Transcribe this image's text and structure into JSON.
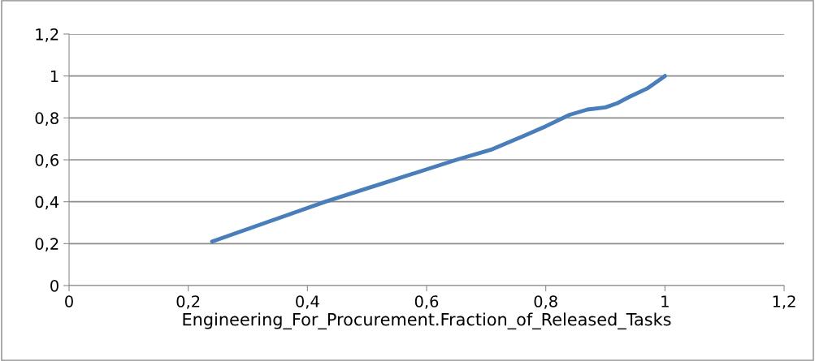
{
  "chart_data": {
    "type": "line",
    "xlabel": "Engineering_For_Procurement.Fraction_of_Released_Tasks",
    "x": [
      0.24,
      0.33,
      0.43,
      0.54,
      0.65,
      0.71,
      0.76,
      0.8,
      0.84,
      0.87,
      0.9,
      0.92,
      0.94,
      0.97,
      1.0
    ],
    "series": [
      {
        "color": "#4a7ebb",
        "values": [
          0.21,
          0.3,
          0.4,
          0.5,
          0.6,
          0.65,
          0.71,
          0.76,
          0.815,
          0.84,
          0.85,
          0.87,
          0.9,
          0.94,
          1.0
        ]
      }
    ],
    "xlim": [
      0,
      1.2
    ],
    "xticks": [
      0,
      {
        "value": 0.2,
        "label": "0,2"
      },
      {
        "value": 0.4,
        "label": "0,4"
      },
      {
        "value": 0.6,
        "label": "0,6"
      },
      {
        "value": 0.8,
        "label": "0,8"
      },
      1,
      {
        "value": 1.2,
        "label": "1,2"
      }
    ],
    "ylim": [
      0,
      1.2
    ],
    "yticks": [
      0,
      {
        "value": 0.2,
        "label": "0,2"
      },
      {
        "value": 0.4,
        "label": "0,4"
      },
      {
        "value": 0.6,
        "label": "0,6"
      },
      {
        "value": 0.8,
        "label": "0,8"
      },
      1,
      {
        "value": 1.2,
        "label": "1,2"
      }
    ],
    "grid": "y",
    "marker": "none",
    "line_style": "solid"
  }
}
